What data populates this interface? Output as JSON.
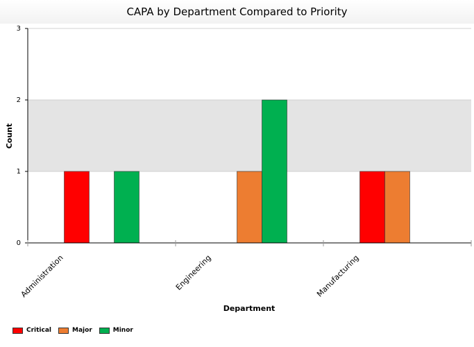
{
  "chart_data": {
    "type": "bar",
    "title": "CAPA by Department Compared to Priority",
    "xlabel": "Department",
    "ylabel": "Count",
    "categories": [
      "Administration",
      "Engineering",
      "Manufacturing"
    ],
    "series": [
      {
        "name": "Critical",
        "color": "#ff0000",
        "values": [
          1,
          0,
          1
        ]
      },
      {
        "name": "Major",
        "color": "#ed7d31",
        "values": [
          0,
          1,
          1
        ]
      },
      {
        "name": "Minor",
        "color": "#00b050",
        "values": [
          1,
          2,
          0
        ]
      }
    ],
    "ylim": [
      0,
      3
    ],
    "yticks": [
      "0",
      "1",
      "2",
      "3"
    ],
    "legend_position": "bottom-left",
    "bands": "alternating"
  }
}
